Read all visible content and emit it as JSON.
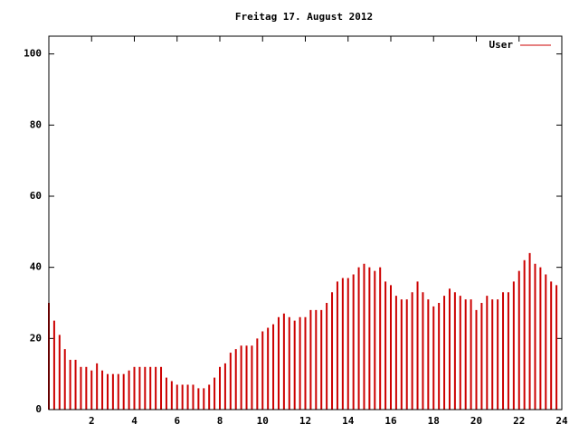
{
  "chart_data": {
    "type": "impulses",
    "title": "Freitag 17. August 2012",
    "x": [
      0,
      0.25,
      0.5,
      0.75,
      1,
      1.25,
      1.5,
      1.75,
      2,
      2.25,
      2.5,
      2.75,
      3,
      3.25,
      3.5,
      3.75,
      4,
      4.25,
      4.5,
      4.75,
      5,
      5.25,
      5.5,
      5.75,
      6,
      6.25,
      6.5,
      6.75,
      7,
      7.25,
      7.5,
      7.75,
      8,
      8.25,
      8.5,
      8.75,
      9,
      9.25,
      9.5,
      9.75,
      10,
      10.25,
      10.5,
      10.75,
      11,
      11.25,
      11.5,
      11.75,
      12,
      12.25,
      12.5,
      12.75,
      13,
      13.25,
      13.5,
      13.75,
      14,
      14.25,
      14.5,
      14.75,
      15,
      15.25,
      15.5,
      15.75,
      16,
      16.25,
      16.5,
      16.75,
      17,
      17.25,
      17.5,
      17.75,
      18,
      18.25,
      18.5,
      18.75,
      19,
      19.25,
      19.5,
      19.75,
      20,
      20.25,
      20.5,
      20.75,
      21,
      21.25,
      21.5,
      21.75,
      22,
      22.25,
      22.5,
      22.75,
      23,
      23.25,
      23.5,
      23.75
    ],
    "series": [
      {
        "name": "User",
        "color": "#cc0000",
        "values": [
          30,
          25,
          21,
          17,
          14,
          14,
          12,
          12,
          11,
          13,
          11,
          10,
          10,
          10,
          10,
          11,
          12,
          12,
          12,
          12,
          12,
          12,
          9,
          8,
          7,
          7,
          7,
          7,
          6,
          6,
          7,
          9,
          12,
          13,
          16,
          17,
          18,
          18,
          18,
          20,
          22,
          23,
          24,
          26,
          27,
          26,
          25,
          26,
          26,
          28,
          28,
          28,
          30,
          33,
          36,
          37,
          37,
          38,
          40,
          41,
          40,
          39,
          40,
          36,
          35,
          32,
          31,
          31,
          33,
          36,
          33,
          31,
          29,
          30,
          32,
          34,
          33,
          32,
          31,
          31,
          28,
          30,
          32,
          31,
          31,
          33,
          33,
          36,
          39,
          42,
          44,
          41,
          40,
          38,
          36,
          35
        ]
      }
    ],
    "xlim": [
      0,
      24
    ],
    "xticks": [
      2,
      4,
      6,
      8,
      10,
      12,
      14,
      16,
      18,
      20,
      22,
      24
    ],
    "ylim": [
      0,
      105
    ],
    "yticks": [
      0,
      20,
      40,
      60,
      80,
      100
    ],
    "legend": "top-right"
  }
}
